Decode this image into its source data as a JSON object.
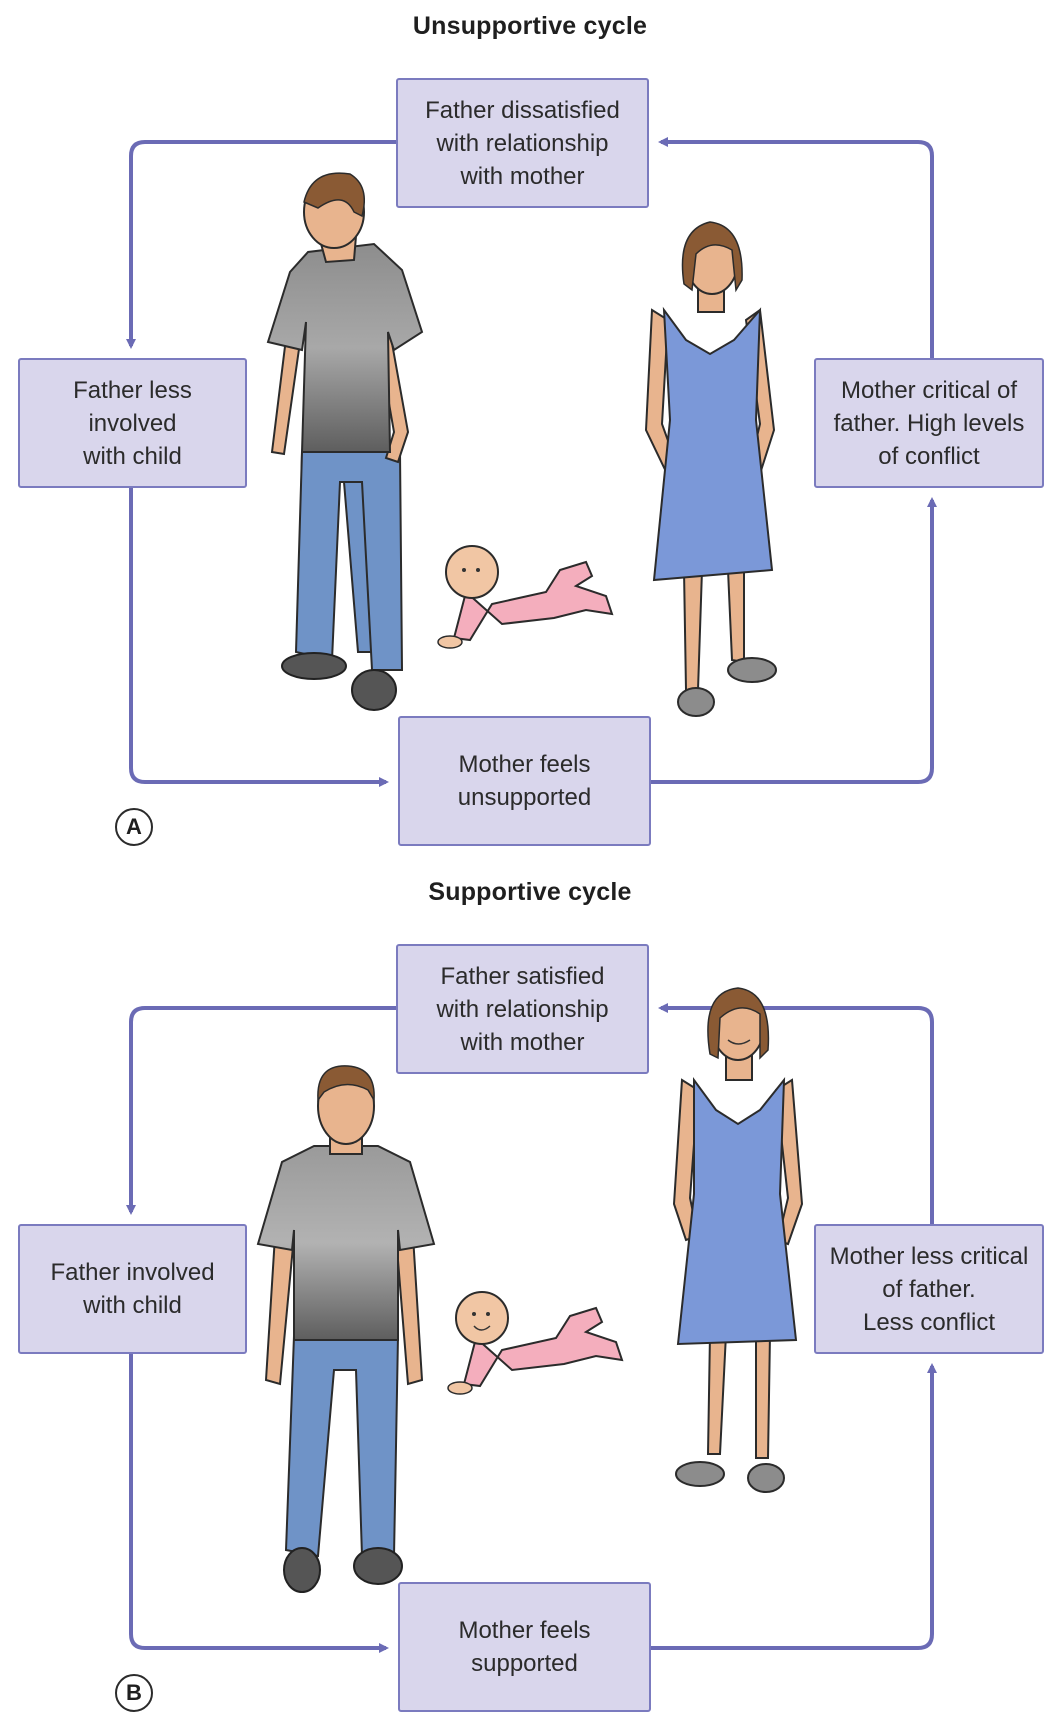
{
  "colors": {
    "box_fill": "#d9d6ec",
    "box_border": "#7b7bbf",
    "arrow": "#6b6bb5",
    "dress": "#7b98d8",
    "jeans": "#6f93c7",
    "baby_suit": "#f4aebd"
  },
  "diagrams": [
    {
      "title": "Unsupportive cycle",
      "label": "A",
      "boxes": {
        "top": "Father dissatisfied\nwith relationship\nwith mother",
        "left": "Father less involved\nwith child",
        "right": "Mother critical of\nfather.  High levels\nof conflict",
        "bottom": "Mother feels\nunsupported"
      },
      "figures": [
        "father-figure",
        "baby-figure",
        "mother-figure"
      ]
    },
    {
      "title": "Supportive cycle",
      "label": "B",
      "boxes": {
        "top": "Father satisfied\nwith relationship\nwith mother",
        "left": "Father involved\nwith child",
        "right": "Mother less critical\nof father.\nLess conflict",
        "bottom": "Mother feels\nsupported"
      },
      "figures": [
        "father-figure",
        "baby-figure",
        "mother-figure"
      ]
    }
  ]
}
